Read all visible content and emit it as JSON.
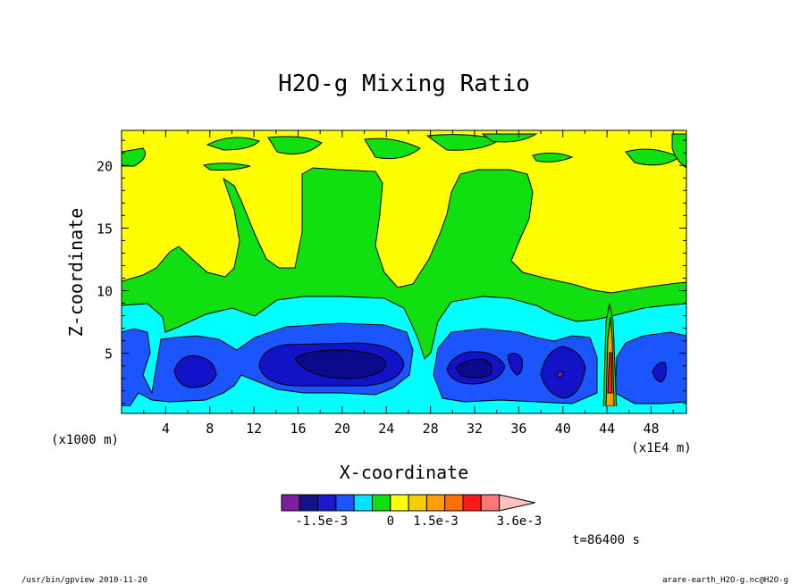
{
  "chart_data": {
    "type": "heatmap",
    "title": "H2O-g Mixing Ratio",
    "xlabel": "X-coordinate",
    "ylabel": "Z-coordinate",
    "x_unit_left": "(x1000 m)",
    "x_unit_right": "(x1E4 m)",
    "xticks": [
      "4",
      "8",
      "12",
      "16",
      "20",
      "24",
      "28",
      "32",
      "36",
      "40",
      "44",
      "48"
    ],
    "xtick_values": [
      4,
      8,
      12,
      16,
      20,
      24,
      28,
      32,
      36,
      40,
      44,
      48
    ],
    "yticks": [
      "5",
      "10",
      "15",
      "20"
    ],
    "ytick_values": [
      5,
      10,
      15,
      20
    ],
    "xlim": [
      0,
      51.2
    ],
    "ylim": [
      0.2,
      22.8
    ],
    "colorbar": {
      "colors": [
        "#7a1fa0",
        "#12128a",
        "#1a1acc",
        "#1a55ff",
        "#00e5ff",
        "#10e010",
        "#ffff00",
        "#f5d000",
        "#ffa000",
        "#ff7000",
        "#ff1a1a",
        "#f87878",
        "#ffc0c0"
      ],
      "labels": [
        "-1.5e-3",
        "0",
        "1.5e-3",
        "3.6e-3"
      ]
    },
    "time_label": "t=86400 s"
  },
  "footer": {
    "left": "/usr/bin/gpview  2010-11-20",
    "right": "arare-earth_H2O-g.nc@H2O-g"
  },
  "colors": {
    "yellow": "#ffff00",
    "green": "#10e010",
    "cyan": "#00ffff",
    "blue": "#1a55ff",
    "deepblue": "#1010c0",
    "navy": "#0a0a8a"
  }
}
